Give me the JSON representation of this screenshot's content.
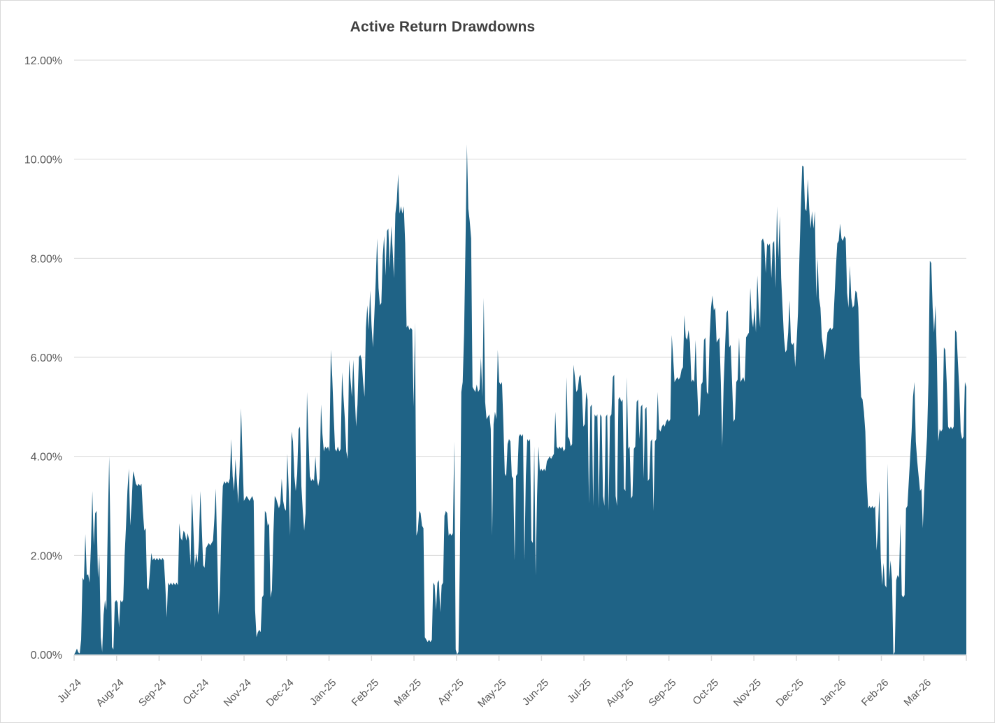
{
  "chart_data": {
    "type": "area",
    "title": "Active Return Drawdowns",
    "xlabel": "",
    "ylabel": "",
    "legend": "none",
    "grid": "horizontal gridlines every 2%",
    "y_min": 0,
    "y_max": 12,
    "y_tick_labels": [
      "0.00%",
      "2.00%",
      "4.00%",
      "6.00%",
      "8.00%",
      "10.00%",
      "12.00%"
    ],
    "x_tick_labels": [
      "Jul-24",
      "Aug-24",
      "Sep-24",
      "Oct-24",
      "Nov-24",
      "Dec-24",
      "Jan-25",
      "Feb-25",
      "Mar-25",
      "Apr-25",
      "May-25",
      "Jun-25",
      "Jul-25",
      "Aug-25",
      "Sep-25",
      "Oct-25",
      "Nov-25",
      "Dec-25",
      "Jan-26",
      "Feb-26",
      "Mar-26"
    ],
    "series_name": "Active return drawdown",
    "values_unit": "percent",
    "x_note": "values sampled at approximately daily intervals from Jul 2024 through end of Mar 2026, plotted left to right",
    "colors": {
      "area_fill": "#1F6386",
      "gridline": "#D9D9D9",
      "axis_line": "#D9D9D9",
      "tick_labels": "#595959",
      "title": "#404040",
      "border": "#D9D9D9",
      "background": "#FFFFFF"
    },
    "values": [
      0,
      0.05,
      0.12,
      0.04,
      0.02,
      0.3,
      1.55,
      1.5,
      2.43,
      1.6,
      1.62,
      1.45,
      2.2,
      3.3,
      2.2,
      2.85,
      2.9,
      1.55,
      2.0,
      0.35,
      0.05,
      0.8,
      1.1,
      0.9,
      2.6,
      4.0,
      2.2,
      0.15,
      0.1,
      1.05,
      1.1,
      1.05,
      0.55,
      1.1,
      1.05,
      1.1,
      2.0,
      2.6,
      3.3,
      3.75,
      2.6,
      3.05,
      3.7,
      3.6,
      3.45,
      3.4,
      3.45,
      3.4,
      3.45,
      2.9,
      2.5,
      2.55,
      1.35,
      1.3,
      1.65,
      2.05,
      1.9,
      1.95,
      1.9,
      1.95,
      1.9,
      1.95,
      1.9,
      1.95,
      1.9,
      1.4,
      0.75,
      1.45,
      1.4,
      1.45,
      1.4,
      1.45,
      1.4,
      1.45,
      1.4,
      2.65,
      2.35,
      2.3,
      2.5,
      2.45,
      2.3,
      2.45,
      2.3,
      1.8,
      3.25,
      2.55,
      1.75,
      2.05,
      1.85,
      2.3,
      3.3,
      2.55,
      1.8,
      1.75,
      2.15,
      2.2,
      2.25,
      2.2,
      2.25,
      2.3,
      2.75,
      3.35,
      2.1,
      0.8,
      1.3,
      2.6,
      3.4,
      3.5,
      3.45,
      3.5,
      3.45,
      3.55,
      4.35,
      3.6,
      3.3,
      3.95,
      3.5,
      3.05,
      3.8,
      4.97,
      4.0,
      3.1,
      3.15,
      3.2,
      3.15,
      3.1,
      3.15,
      3.2,
      3.1,
      0.9,
      0.35,
      0.45,
      0.5,
      0.45,
      1.15,
      1.2,
      2.9,
      2.85,
      2.6,
      2.65,
      1.15,
      1.3,
      2.4,
      3.2,
      3.15,
      3.05,
      2.95,
      3.05,
      3.55,
      3.1,
      2.95,
      2.9,
      4.05,
      3.3,
      2.4,
      4.5,
      4.3,
      3.6,
      3.3,
      3.65,
      4.55,
      4.6,
      3.4,
      2.9,
      2.5,
      2.85,
      5.3,
      4.4,
      3.6,
      3.5,
      3.55,
      3.5,
      4.0,
      3.55,
      3.4,
      3.55,
      5.05,
      4.45,
      4.1,
      4.2,
      4.15,
      4.2,
      4.1,
      6.15,
      5.6,
      4.85,
      4.15,
      4.1,
      4.2,
      4.1,
      4.15,
      5.7,
      5.2,
      4.75,
      4.1,
      3.95,
      5.95,
      5.55,
      5.2,
      5.95,
      5.25,
      4.6,
      5.05,
      6.0,
      6.05,
      5.95,
      5.5,
      5.2,
      6.6,
      7.05,
      6.55,
      7.35,
      6.65,
      6.2,
      6.85,
      7.55,
      8.4,
      7.4,
      7.05,
      7.1,
      8.05,
      8.45,
      7.65,
      8.55,
      8.6,
      7.8,
      8.65,
      8.2,
      7.6,
      8.9,
      9.15,
      9.7,
      8.9,
      9.05,
      8.9,
      9.05,
      8.3,
      6.6,
      6.65,
      6.55,
      6.6,
      6.55,
      5.0,
      6.7,
      2.4,
      2.5,
      2.9,
      2.85,
      2.6,
      2.55,
      0.35,
      0.3,
      0.25,
      0.3,
      0.25,
      0.3,
      1.45,
      1.4,
      0.9,
      1.45,
      1.5,
      0.85,
      1.4,
      1.45,
      2.8,
      2.9,
      2.85,
      2.4,
      2.45,
      2.4,
      2.45,
      4.3,
      0.1,
      0.0,
      0.05,
      2.0,
      5.3,
      5.5,
      6.5,
      8.3,
      10.3,
      9.0,
      8.75,
      8.4,
      5.4,
      5.35,
      5.3,
      5.45,
      5.3,
      5.35,
      6.0,
      5.2,
      7.2,
      5.1,
      4.75,
      4.8,
      4.85,
      4.55,
      2.4,
      4.65,
      4.9,
      4.75,
      6.15,
      5.5,
      5.45,
      5.5,
      4.65,
      3.65,
      3.6,
      4.25,
      4.35,
      4.3,
      3.6,
      3.55,
      1.9,
      3.6,
      3.65,
      4.4,
      4.45,
      4.4,
      4.45,
      1.9,
      3.6,
      4.35,
      4.3,
      4.35,
      2.3,
      2.25,
      4.2,
      1.6,
      3.2,
      4.2,
      3.7,
      3.75,
      3.7,
      3.75,
      3.7,
      3.9,
      3.95,
      4.0,
      3.95,
      4.0,
      4.05,
      4.9,
      4.2,
      4.15,
      4.2,
      4.15,
      4.2,
      4.1,
      4.15,
      5.6,
      4.4,
      4.35,
      4.2,
      4.25,
      5.85,
      5.6,
      5.3,
      5.35,
      5.6,
      5.65,
      5.3,
      4.6,
      4.65,
      5.3,
      5.15,
      3.05,
      5.0,
      5.05,
      3.0,
      4.85,
      4.8,
      4.85,
      2.95,
      4.85,
      4.8,
      3.2,
      3.0,
      4.8,
      4.85,
      2.9,
      4.8,
      4.85,
      5.6,
      5.65,
      3.2,
      3.0,
      5.15,
      5.2,
      5.1,
      5.15,
      3.35,
      3.3,
      5.6,
      4.15,
      4.2,
      3.15,
      3.2,
      4.15,
      4.2,
      5.1,
      5.15,
      4.35,
      5.0,
      5.05,
      3.55,
      4.95,
      5.0,
      3.5,
      3.55,
      4.3,
      4.35,
      2.9,
      4.3,
      4.35,
      5.3,
      4.55,
      4.5,
      4.6,
      4.65,
      4.6,
      4.7,
      4.75,
      4.7,
      4.75,
      6.45,
      6.0,
      5.5,
      5.55,
      5.6,
      5.55,
      5.6,
      5.75,
      5.8,
      6.85,
      6.4,
      6.35,
      6.55,
      6.3,
      5.5,
      5.55,
      5.5,
      6.35,
      5.5,
      4.8,
      4.85,
      5.45,
      5.5,
      6.35,
      6.4,
      5.3,
      5.25,
      6.4,
      7.0,
      7.25,
      6.95,
      7.0,
      6.3,
      6.35,
      6.4,
      5.5,
      4.2,
      5.45,
      6.2,
      6.9,
      6.95,
      6.2,
      6.25,
      5.5,
      4.7,
      4.75,
      5.5,
      5.55,
      6.4,
      5.5,
      5.55,
      5.6,
      5.5,
      6.4,
      6.45,
      6.5,
      7.4,
      6.8,
      6.6,
      7.0,
      6.5,
      7.65,
      7.0,
      6.6,
      8.35,
      8.4,
      8.3,
      7.7,
      8.3,
      8.25,
      8.3,
      7.6,
      8.3,
      8.35,
      7.4,
      9.05,
      8.0,
      8.85,
      7.6,
      7.0,
      6.4,
      6.1,
      6.15,
      6.5,
      7.15,
      6.3,
      6.25,
      6.3,
      5.8,
      6.3,
      6.9,
      8.0,
      9.0,
      9.87,
      9.85,
      9.0,
      8.95,
      9.6,
      9.0,
      8.6,
      8.95,
      8.6,
      8.95,
      7.2,
      8.0,
      7.2,
      7.0,
      6.4,
      6.2,
      5.95,
      6.2,
      6.5,
      6.55,
      6.6,
      6.55,
      6.6,
      7.2,
      7.8,
      8.3,
      8.35,
      8.7,
      8.4,
      8.35,
      8.45,
      8.4,
      7.3,
      7.0,
      7.85,
      7.2,
      7.0,
      7.05,
      7.35,
      7.3,
      7.0,
      5.9,
      5.2,
      5.15,
      4.9,
      4.5,
      3.5,
      2.95,
      3.0,
      2.95,
      3.0,
      2.95,
      3.0,
      2.1,
      2.5,
      3.3,
      1.95,
      1.4,
      1.85,
      1.4,
      1.35,
      3.85,
      1.5,
      1.9,
      1.5,
      0.0,
      0.05,
      1.5,
      1.6,
      1.55,
      2.65,
      1.2,
      1.15,
      1.2,
      2.95,
      3.0,
      3.5,
      4.0,
      4.5,
      5.2,
      5.5,
      4.3,
      3.9,
      3.6,
      3.3,
      3.35,
      2.55,
      3.3,
      3.9,
      4.4,
      5.5,
      7.95,
      7.9,
      7.0,
      6.5,
      7.05,
      6.0,
      4.3,
      4.55,
      4.5,
      4.55,
      6.2,
      6.15,
      5.5,
      4.6,
      4.55,
      4.6,
      4.55,
      4.6,
      6.55,
      6.5,
      5.9,
      5.35,
      4.5,
      4.35,
      4.4,
      5.5,
      5.4
    ]
  }
}
